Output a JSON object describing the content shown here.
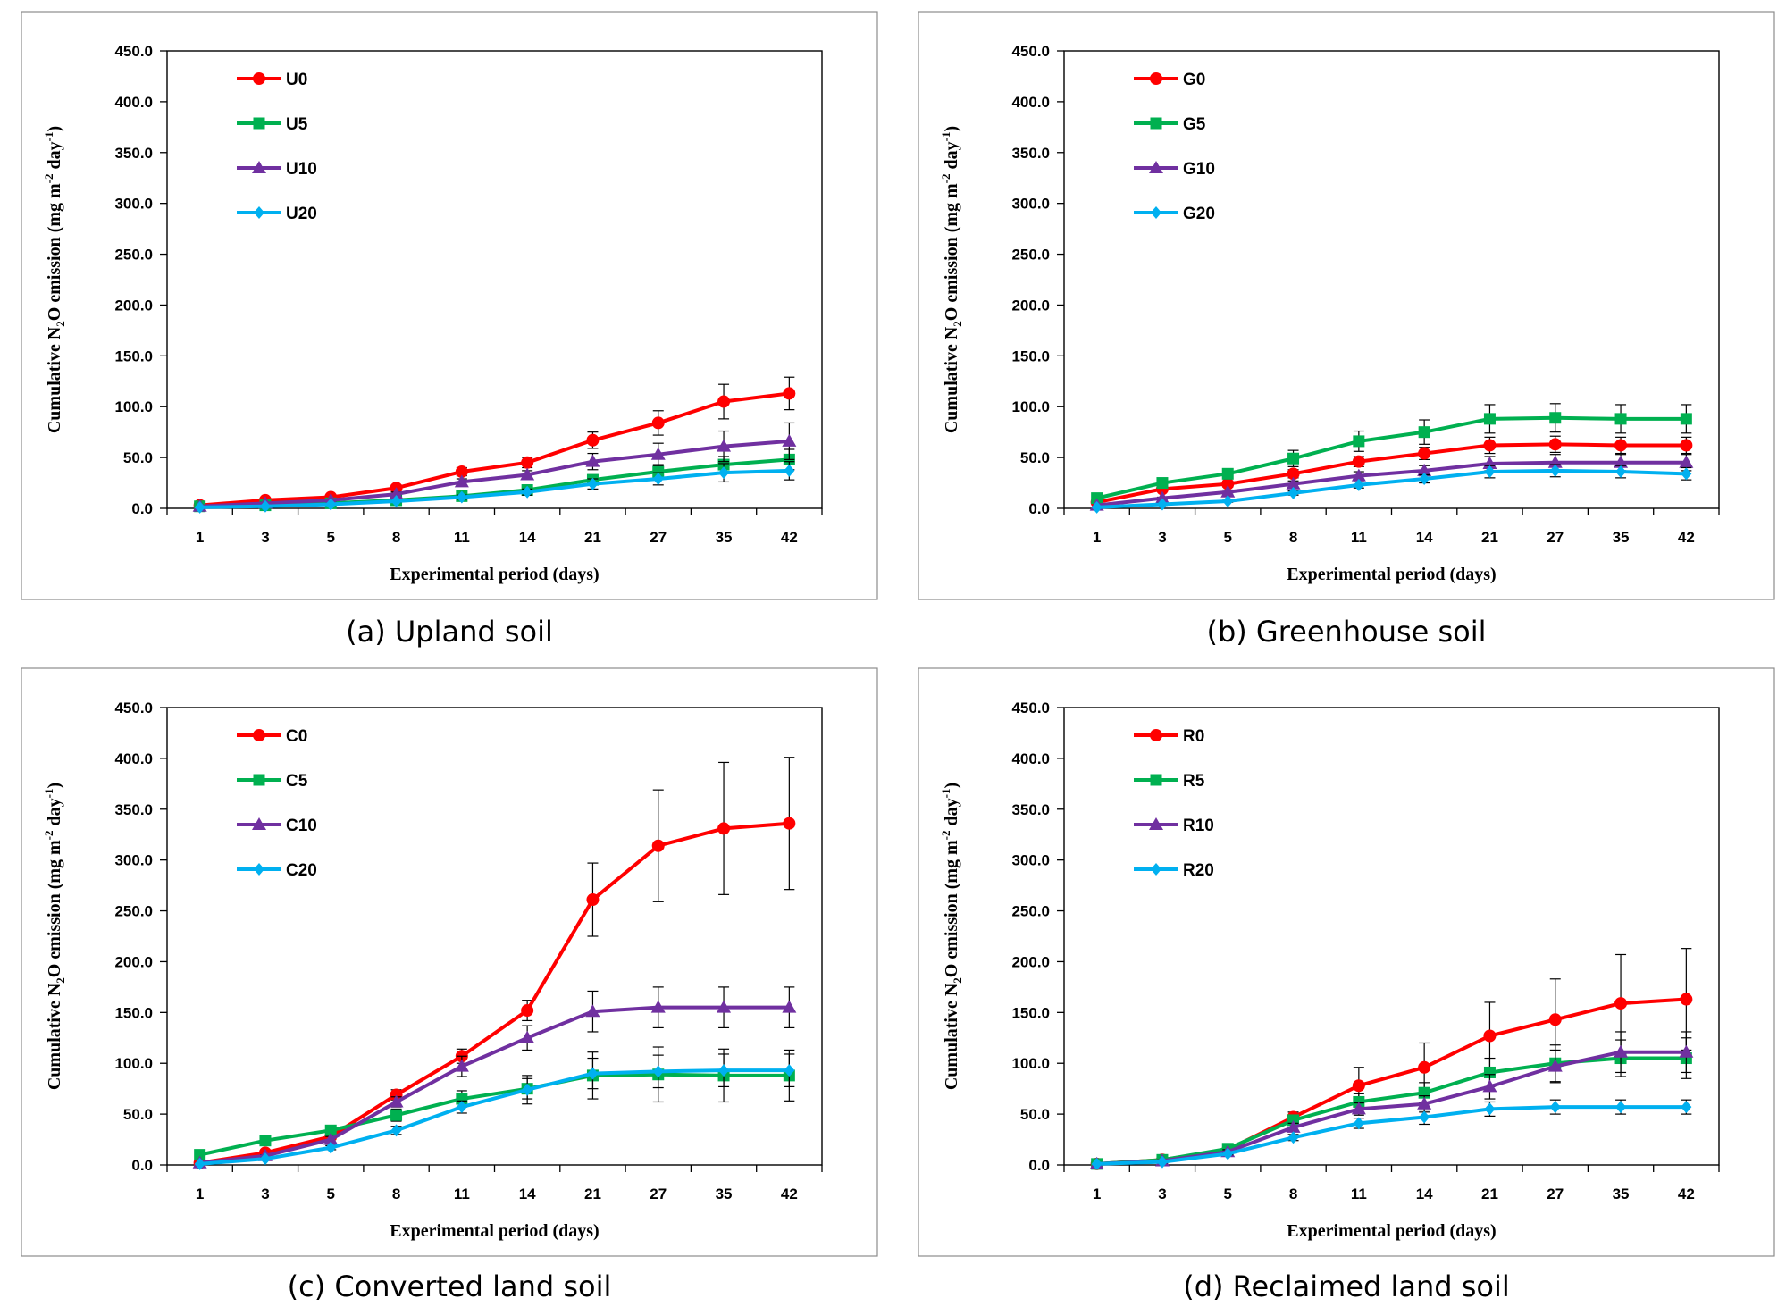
{
  "axis": {
    "ylabel": "Cumulative N2O emission (mg m-2 day-1)",
    "ylabel_parts": {
      "pre": "Cumulative N",
      "sub": "2",
      "mid": "O emission (mg m",
      "sup1": "-2",
      "mid2": " day",
      "sup2": "-1",
      "post": ")"
    },
    "xlabel": "Experimental period (days)",
    "ylim": [
      0,
      450
    ],
    "yticks": [
      "0.0",
      "50.0",
      "100.0",
      "150.0",
      "200.0",
      "250.0",
      "300.0",
      "350.0",
      "400.0",
      "450.0"
    ],
    "categories": [
      "1",
      "3",
      "5",
      "8",
      "11",
      "14",
      "21",
      "27",
      "35",
      "42"
    ]
  },
  "styles": {
    "colors": [
      "#ff0000",
      "#00b050",
      "#7030a0",
      "#00b0f0"
    ],
    "markers": [
      "circle",
      "square",
      "triangle",
      "diamond"
    ]
  },
  "chart_data": [
    {
      "type": "line",
      "caption": "(a) Upland soil",
      "title": "",
      "xlabel": "Experimental period (days)",
      "ylabel": "Cumulative N2O emission (mg m-2 day-1)",
      "ylim": [
        0,
        450
      ],
      "categories": [
        "1",
        "3",
        "5",
        "8",
        "11",
        "14",
        "21",
        "27",
        "35",
        "42"
      ],
      "legend_position": "top-left",
      "series": [
        {
          "name": "U0",
          "values": [
            3,
            8,
            11,
            20,
            36,
            45,
            67,
            84,
            105,
            113
          ],
          "err": [
            0,
            1,
            2,
            3,
            4,
            5,
            8,
            12,
            17,
            16
          ]
        },
        {
          "name": "U5",
          "values": [
            2,
            3,
            5,
            8,
            12,
            18,
            28,
            36,
            43,
            48
          ],
          "err": [
            0,
            1,
            1,
            2,
            2,
            3,
            5,
            7,
            8,
            10
          ]
        },
        {
          "name": "U10",
          "values": [
            2,
            5,
            8,
            14,
            26,
            33,
            46,
            53,
            61,
            66
          ],
          "err": [
            0,
            1,
            1,
            2,
            3,
            4,
            8,
            11,
            15,
            18
          ]
        },
        {
          "name": "U20",
          "values": [
            1,
            2,
            4,
            7,
            11,
            16,
            24,
            29,
            35,
            37
          ],
          "err": [
            0,
            1,
            1,
            1,
            2,
            3,
            5,
            6,
            9,
            9
          ]
        }
      ]
    },
    {
      "type": "line",
      "caption": "(b) Greenhouse soil",
      "title": "",
      "xlabel": "Experimental period (days)",
      "ylabel": "Cumulative N2O emission (mg m-2 day-1)",
      "ylim": [
        0,
        450
      ],
      "categories": [
        "1",
        "3",
        "5",
        "8",
        "11",
        "14",
        "21",
        "27",
        "35",
        "42"
      ],
      "legend_position": "top-left",
      "series": [
        {
          "name": "G0",
          "values": [
            6,
            19,
            24,
            34,
            46,
            54,
            62,
            63,
            62,
            62
          ],
          "err": [
            0,
            2,
            3,
            4,
            5,
            6,
            8,
            8,
            8,
            8
          ]
        },
        {
          "name": "G5",
          "values": [
            10,
            25,
            34,
            49,
            66,
            75,
            88,
            89,
            88,
            88
          ],
          "err": [
            1,
            3,
            5,
            8,
            10,
            12,
            14,
            14,
            14,
            14
          ]
        },
        {
          "name": "G10",
          "values": [
            3,
            10,
            16,
            24,
            32,
            37,
            44,
            45,
            45,
            45
          ],
          "err": [
            0,
            1,
            2,
            3,
            4,
            5,
            7,
            8,
            8,
            8
          ]
        },
        {
          "name": "G20",
          "values": [
            1,
            4,
            7,
            15,
            23,
            29,
            36,
            37,
            36,
            34
          ],
          "err": [
            0,
            1,
            1,
            2,
            3,
            4,
            6,
            6,
            6,
            6
          ]
        }
      ]
    },
    {
      "type": "line",
      "caption": "(c) Converted land soil",
      "title": "",
      "xlabel": "Experimental period (days)",
      "ylabel": "Cumulative N2O emission (mg m-2 day-1)",
      "ylim": [
        0,
        450
      ],
      "categories": [
        "1",
        "3",
        "5",
        "8",
        "11",
        "14",
        "21",
        "27",
        "35",
        "42"
      ],
      "legend_position": "top-left",
      "series": [
        {
          "name": "C0",
          "values": [
            2,
            12,
            28,
            69,
            107,
            152,
            261,
            314,
            331,
            336
          ],
          "err": [
            0,
            2,
            3,
            5,
            7,
            10,
            36,
            55,
            65,
            65
          ]
        },
        {
          "name": "C5",
          "values": [
            10,
            24,
            34,
            49,
            65,
            75,
            88,
            89,
            88,
            88
          ],
          "err": [
            1,
            3,
            4,
            6,
            8,
            10,
            23,
            27,
            26,
            25
          ]
        },
        {
          "name": "C10",
          "values": [
            2,
            9,
            25,
            62,
            97,
            125,
            151,
            155,
            155,
            155
          ],
          "err": [
            0,
            1,
            3,
            5,
            10,
            12,
            20,
            20,
            20,
            20
          ]
        },
        {
          "name": "C20",
          "values": [
            1,
            6,
            17,
            34,
            57,
            74,
            90,
            92,
            93,
            93
          ],
          "err": [
            0,
            1,
            2,
            4,
            6,
            14,
            15,
            16,
            16,
            16
          ]
        }
      ]
    },
    {
      "type": "line",
      "caption": "(d) Reclaimed land soil",
      "title": "",
      "xlabel": "Experimental period (days)",
      "ylabel": "Cumulative N2O emission (mg m-2 day-1)",
      "ylim": [
        0,
        450
      ],
      "categories": [
        "1",
        "3",
        "5",
        "8",
        "11",
        "14",
        "21",
        "27",
        "35",
        "42"
      ],
      "legend_position": "top-left",
      "series": [
        {
          "name": "R0",
          "values": [
            1,
            5,
            15,
            47,
            78,
            96,
            127,
            143,
            159,
            163
          ],
          "err": [
            0,
            1,
            2,
            5,
            18,
            24,
            33,
            40,
            48,
            50
          ]
        },
        {
          "name": "R5",
          "values": [
            1,
            5,
            16,
            44,
            62,
            71,
            91,
            100,
            105,
            105
          ],
          "err": [
            0,
            1,
            2,
            4,
            8,
            10,
            14,
            18,
            18,
            20
          ]
        },
        {
          "name": "R10",
          "values": [
            1,
            4,
            13,
            37,
            55,
            60,
            77,
            97,
            111,
            111
          ],
          "err": [
            0,
            1,
            2,
            4,
            6,
            8,
            12,
            16,
            20,
            20
          ]
        },
        {
          "name": "R20",
          "values": [
            1,
            3,
            11,
            27,
            41,
            47,
            55,
            57,
            57,
            57
          ],
          "err": [
            0,
            1,
            1,
            3,
            5,
            7,
            7,
            7,
            7,
            7
          ]
        }
      ]
    }
  ]
}
